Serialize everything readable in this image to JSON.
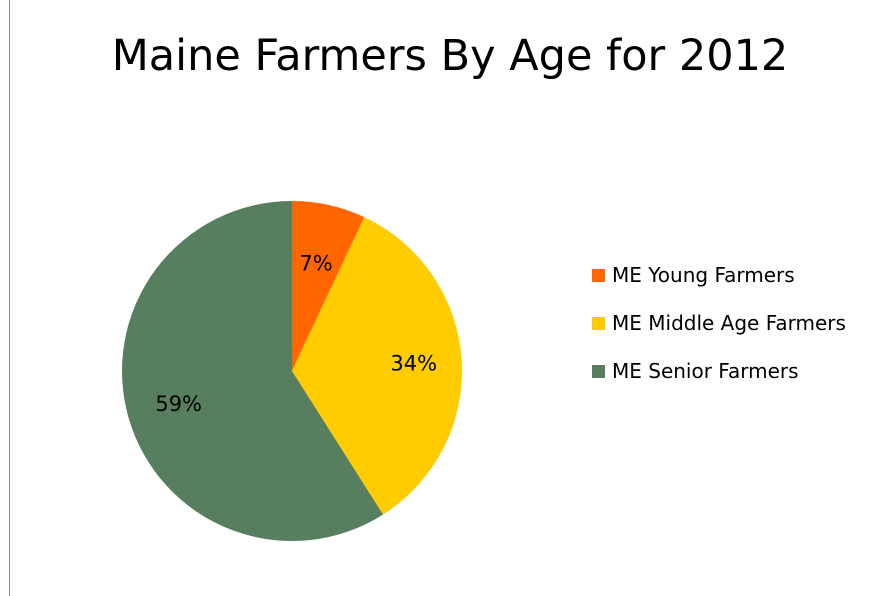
{
  "chart_data": {
    "type": "pie",
    "title": "Maine Farmers By Age for 2012",
    "categories": [
      "ME Young Farmers",
      "ME Middle Age Farmers",
      "ME Senior Farmers"
    ],
    "values": [
      7,
      34,
      59
    ],
    "data_labels": [
      "7%",
      "34%",
      "59%"
    ],
    "colors": [
      "#ff6600",
      "#ffcc00",
      "#577e5e"
    ],
    "legend_position": "right"
  }
}
